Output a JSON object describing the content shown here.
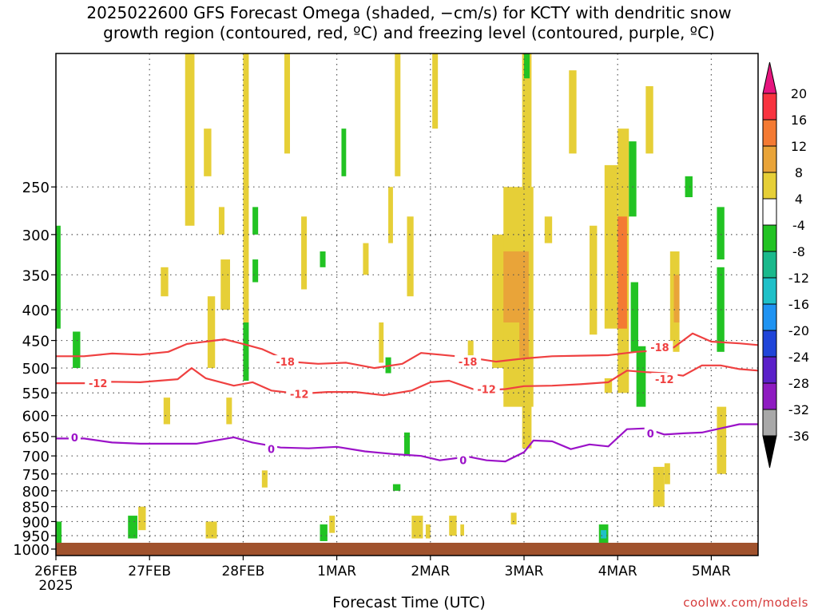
{
  "title_line1": "2025022600 GFS Forecast Omega (shaded, −cm/s) for KCTY with dendritic snow",
  "title_line2": "growth region (contoured, red, ºC) and freezing level (contoured, purple, ºC)",
  "xlabel": "Forecast Time (UTC)",
  "credit": "coolwx.com/models",
  "chart_data": {
    "type": "heatmap",
    "x_axis": {
      "range": [
        "2025-02-26T00",
        "2025-03-05T12"
      ],
      "ticks": [
        {
          "day": 0,
          "label": "26FEB",
          "sublabel": "2025"
        },
        {
          "day": 1,
          "label": "27FEB"
        },
        {
          "day": 2,
          "label": "28FEB"
        },
        {
          "day": 3,
          "label": "1MAR"
        },
        {
          "day": 4,
          "label": "2MAR"
        },
        {
          "day": 5,
          "label": "3MAR"
        },
        {
          "day": 6,
          "label": "4MAR"
        },
        {
          "day": 7,
          "label": "5MAR"
        }
      ],
      "max_day": 7.5
    },
    "y_axis": {
      "label": "",
      "range": [
        1025,
        150
      ],
      "ticks": [
        250,
        300,
        350,
        400,
        450,
        500,
        550,
        600,
        650,
        700,
        750,
        800,
        850,
        900,
        950,
        1000
      ]
    },
    "colorbar": {
      "labels": [
        20,
        16,
        12,
        8,
        4,
        -4,
        -8,
        -12,
        -16,
        -20,
        -24,
        -28,
        -32,
        -36
      ],
      "colors": [
        "#f8333f",
        "#f47a33",
        "#e9a439",
        "#e6cf37",
        "#ffffff",
        "#22c323",
        "#1ab98c",
        "#1fc0c8",
        "#1f93f2",
        "#2045d9",
        "#5b20c9",
        "#8e1bc1",
        "#a8a8a8"
      ],
      "top_color": "#e6157e",
      "bottom_color": "#000000"
    },
    "contour_labels": [
      {
        "text": "-18",
        "day": 2.45,
        "p": 488,
        "color": "red"
      },
      {
        "text": "-18",
        "day": 4.4,
        "p": 488,
        "color": "red"
      },
      {
        "text": "-18",
        "day": 6.45,
        "p": 462,
        "color": "red"
      },
      {
        "text": "-12",
        "day": 0.45,
        "p": 530,
        "color": "red"
      },
      {
        "text": "-12",
        "day": 2.6,
        "p": 552,
        "color": "red"
      },
      {
        "text": "-12",
        "day": 4.6,
        "p": 542,
        "color": "red"
      },
      {
        "text": "-12",
        "day": 6.5,
        "p": 522,
        "color": "red"
      },
      {
        "text": "0",
        "day": 0.2,
        "p": 652,
        "color": "purple"
      },
      {
        "text": "0",
        "day": 2.3,
        "p": 682,
        "color": "purple"
      },
      {
        "text": "0",
        "day": 4.35,
        "p": 712,
        "color": "purple"
      },
      {
        "text": "0",
        "day": 6.35,
        "p": 642,
        "color": "purple"
      }
    ],
    "series": [
      {
        "contour": "-18 C",
        "color": "#ef4040",
        "day": [
          0,
          0.3,
          0.6,
          0.9,
          1.2,
          1.4,
          1.6,
          1.8,
          2.0,
          2.2,
          2.5,
          2.8,
          3.1,
          3.4,
          3.7,
          3.9,
          4.1,
          4.4,
          4.7,
          5.0,
          5.3,
          5.6,
          5.9,
          6.2,
          6.4,
          6.6,
          6.8,
          7.0,
          7.3,
          7.5
        ],
        "p": [
          478,
          478,
          473,
          475,
          470,
          456,
          452,
          448,
          456,
          465,
          488,
          492,
          490,
          500,
          492,
          472,
          475,
          480,
          488,
          482,
          478,
          477,
          476,
          470,
          468,
          462,
          438,
          452,
          455,
          458
        ]
      },
      {
        "contour": "-12 C",
        "color": "#ef4040",
        "day": [
          0,
          0.3,
          0.6,
          0.9,
          1.1,
          1.3,
          1.45,
          1.6,
          1.9,
          2.1,
          2.3,
          2.6,
          2.9,
          3.2,
          3.5,
          3.8,
          4.0,
          4.2,
          4.5,
          4.8,
          5.0,
          5.3,
          5.6,
          5.9,
          6.1,
          6.3,
          6.5,
          6.7,
          6.9,
          7.1,
          7.3,
          7.5
        ],
        "p": [
          530,
          530,
          527,
          528,
          525,
          522,
          500,
          520,
          535,
          528,
          545,
          552,
          548,
          548,
          555,
          545,
          528,
          525,
          545,
          542,
          536,
          535,
          532,
          528,
          505,
          508,
          510,
          515,
          495,
          495,
          502,
          505
        ]
      },
      {
        "contour": "0 C",
        "color": "#9b12c8",
        "day": [
          0,
          0.3,
          0.6,
          0.9,
          1.2,
          1.5,
          1.7,
          1.9,
          2.1,
          2.4,
          2.7,
          3.0,
          3.3,
          3.6,
          3.9,
          4.1,
          4.4,
          4.6,
          4.8,
          5.0,
          5.1,
          5.3,
          5.5,
          5.7,
          5.9,
          6.1,
          6.3,
          6.5,
          6.7,
          6.9,
          7.1,
          7.3,
          7.5
        ],
        "p": [
          655,
          655,
          665,
          668,
          668,
          668,
          660,
          652,
          665,
          678,
          680,
          676,
          688,
          695,
          700,
          712,
          702,
          712,
          715,
          690,
          660,
          662,
          682,
          670,
          675,
          632,
          630,
          645,
          642,
          640,
          630,
          620,
          620
        ]
      }
    ],
    "omega_cells": [
      {
        "day": 0.0,
        "d2": 0.05,
        "p1": 290,
        "p2": 430,
        "v": -6
      },
      {
        "day": 0.18,
        "d2": 0.26,
        "p1": 435,
        "p2": 500,
        "v": -6
      },
      {
        "day": 0.0,
        "d2": 0.06,
        "p1": 900,
        "p2": 990,
        "v": -6
      },
      {
        "day": 0.77,
        "d2": 0.87,
        "p1": 880,
        "p2": 960,
        "v": -6
      },
      {
        "day": 0.88,
        "d2": 0.96,
        "p1": 850,
        "p2": 930,
        "v": 6
      },
      {
        "day": 1.38,
        "d2": 1.48,
        "p1": 150,
        "p2": 290,
        "v": 6
      },
      {
        "day": 1.12,
        "d2": 1.2,
        "p1": 340,
        "p2": 380,
        "v": 6
      },
      {
        "day": 1.58,
        "d2": 1.66,
        "p1": 200,
        "p2": 240,
        "v": 6
      },
      {
        "day": 1.62,
        "d2": 1.7,
        "p1": 380,
        "p2": 500,
        "v": 6
      },
      {
        "day": 1.76,
        "d2": 1.86,
        "p1": 330,
        "p2": 400,
        "v": 6
      },
      {
        "day": 1.82,
        "d2": 1.88,
        "p1": 560,
        "p2": 620,
        "v": 6
      },
      {
        "day": 2.0,
        "d2": 2.06,
        "p1": 150,
        "p2": 420,
        "v": 6
      },
      {
        "day": 2.0,
        "d2": 2.06,
        "p1": 420,
        "p2": 525,
        "v": -6
      },
      {
        "day": 1.6,
        "d2": 1.72,
        "p1": 900,
        "p2": 960,
        "v": 6
      },
      {
        "day": 2.1,
        "d2": 2.16,
        "p1": 270,
        "p2": 300,
        "v": -6
      },
      {
        "day": 2.1,
        "d2": 2.16,
        "p1": 330,
        "p2": 360,
        "v": -6
      },
      {
        "day": 2.44,
        "d2": 2.5,
        "p1": 150,
        "p2": 220,
        "v": 6
      },
      {
        "day": 2.62,
        "d2": 2.68,
        "p1": 280,
        "p2": 370,
        "v": 6
      },
      {
        "day": 2.2,
        "d2": 2.26,
        "p1": 740,
        "p2": 790,
        "v": 6
      },
      {
        "day": 3.05,
        "d2": 3.1,
        "p1": 200,
        "p2": 240,
        "v": -6
      },
      {
        "day": 2.82,
        "d2": 2.9,
        "p1": 910,
        "p2": 970,
        "v": -6
      },
      {
        "day": 2.92,
        "d2": 2.98,
        "p1": 880,
        "p2": 940,
        "v": 6
      },
      {
        "day": 3.28,
        "d2": 3.34,
        "p1": 310,
        "p2": 350,
        "v": 6
      },
      {
        "day": 3.45,
        "d2": 3.5,
        "p1": 420,
        "p2": 490,
        "v": 6
      },
      {
        "day": 3.52,
        "d2": 3.58,
        "p1": 480,
        "p2": 510,
        "v": -6
      },
      {
        "day": 3.62,
        "d2": 3.68,
        "p1": 150,
        "p2": 240,
        "v": 6
      },
      {
        "day": 3.75,
        "d2": 3.82,
        "p1": 280,
        "p2": 380,
        "v": 6
      },
      {
        "day": 3.55,
        "d2": 3.6,
        "p1": 250,
        "p2": 310,
        "v": 6
      },
      {
        "day": 3.6,
        "d2": 3.68,
        "p1": 780,
        "p2": 800,
        "v": -6
      },
      {
        "day": 3.8,
        "d2": 3.92,
        "p1": 880,
        "p2": 960,
        "v": 6
      },
      {
        "day": 3.95,
        "d2": 4.0,
        "p1": 910,
        "p2": 960,
        "v": 6
      },
      {
        "day": 4.02,
        "d2": 4.08,
        "p1": 150,
        "p2": 200,
        "v": 6
      },
      {
        "day": 4.4,
        "d2": 4.46,
        "p1": 450,
        "p2": 480,
        "v": 6
      },
      {
        "day": 4.66,
        "d2": 4.98,
        "p1": 300,
        "p2": 500,
        "v": 6
      },
      {
        "day": 4.78,
        "d2": 5.1,
        "p1": 250,
        "p2": 580,
        "v": 6
      },
      {
        "day": 4.98,
        "d2": 5.08,
        "p1": 470,
        "p2": 680,
        "v": 6
      },
      {
        "day": 4.98,
        "d2": 5.08,
        "p1": 150,
        "p2": 260,
        "v": 6
      },
      {
        "day": 4.78,
        "d2": 4.98,
        "p1": 320,
        "p2": 420,
        "v": 10
      },
      {
        "day": 4.95,
        "d2": 5.05,
        "p1": 320,
        "p2": 480,
        "v": 10
      },
      {
        "day": 5.0,
        "d2": 5.06,
        "p1": 150,
        "p2": 165,
        "v": -6
      },
      {
        "day": 5.22,
        "d2": 5.3,
        "p1": 280,
        "p2": 310,
        "v": 6
      },
      {
        "day": 4.86,
        "d2": 4.92,
        "p1": 870,
        "p2": 910,
        "v": 6
      },
      {
        "day": 5.48,
        "d2": 5.56,
        "p1": 160,
        "p2": 220,
        "v": 6
      },
      {
        "day": 5.7,
        "d2": 5.78,
        "p1": 290,
        "p2": 440,
        "v": 6
      },
      {
        "day": 5.86,
        "d2": 6.0,
        "p1": 230,
        "p2": 430,
        "v": 6
      },
      {
        "day": 6.0,
        "d2": 6.12,
        "p1": 200,
        "p2": 550,
        "v": 6
      },
      {
        "day": 6.0,
        "d2": 6.1,
        "p1": 280,
        "p2": 430,
        "v": 12
      },
      {
        "day": 5.86,
        "d2": 5.94,
        "p1": 520,
        "p2": 550,
        "v": 6
      },
      {
        "day": 6.12,
        "d2": 6.2,
        "p1": 210,
        "p2": 280,
        "v": -6
      },
      {
        "day": 6.14,
        "d2": 6.22,
        "p1": 360,
        "p2": 470,
        "v": -6
      },
      {
        "day": 6.2,
        "d2": 6.3,
        "p1": 460,
        "p2": 580,
        "v": -6
      },
      {
        "day": 6.3,
        "d2": 6.38,
        "p1": 170,
        "p2": 220,
        "v": 6
      },
      {
        "day": 6.56,
        "d2": 6.66,
        "p1": 320,
        "p2": 470,
        "v": 6
      },
      {
        "day": 6.6,
        "d2": 6.66,
        "p1": 350,
        "p2": 420,
        "v": 10
      },
      {
        "day": 6.72,
        "d2": 6.8,
        "p1": 240,
        "p2": 260,
        "v": -6
      },
      {
        "day": 6.38,
        "d2": 6.5,
        "p1": 730,
        "p2": 850,
        "v": 6
      },
      {
        "day": 6.5,
        "d2": 6.56,
        "p1": 720,
        "p2": 780,
        "v": 6
      },
      {
        "day": 5.8,
        "d2": 5.9,
        "p1": 910,
        "p2": 990,
        "v": -6
      },
      {
        "day": 5.82,
        "d2": 5.88,
        "p1": 930,
        "p2": 960,
        "v": -12
      },
      {
        "day": 7.06,
        "d2": 7.14,
        "p1": 270,
        "p2": 330,
        "v": -6
      },
      {
        "day": 7.06,
        "d2": 7.14,
        "p1": 340,
        "p2": 470,
        "v": -6
      },
      {
        "day": 7.06,
        "d2": 7.16,
        "p1": 580,
        "p2": 750,
        "v": 6
      },
      {
        "day": 4.2,
        "d2": 4.28,
        "p1": 880,
        "p2": 950,
        "v": 6
      },
      {
        "day": 4.32,
        "d2": 4.36,
        "p1": 910,
        "p2": 950,
        "v": 6
      },
      {
        "day": 2.82,
        "d2": 2.88,
        "p1": 320,
        "p2": 340,
        "v": -6
      },
      {
        "day": 3.72,
        "d2": 3.78,
        "p1": 640,
        "p2": 700,
        "v": -6
      },
      {
        "day": 1.74,
        "d2": 1.8,
        "p1": 270,
        "p2": 300,
        "v": 6
      },
      {
        "day": 1.15,
        "d2": 1.22,
        "p1": 560,
        "p2": 620,
        "v": 6
      }
    ]
  }
}
